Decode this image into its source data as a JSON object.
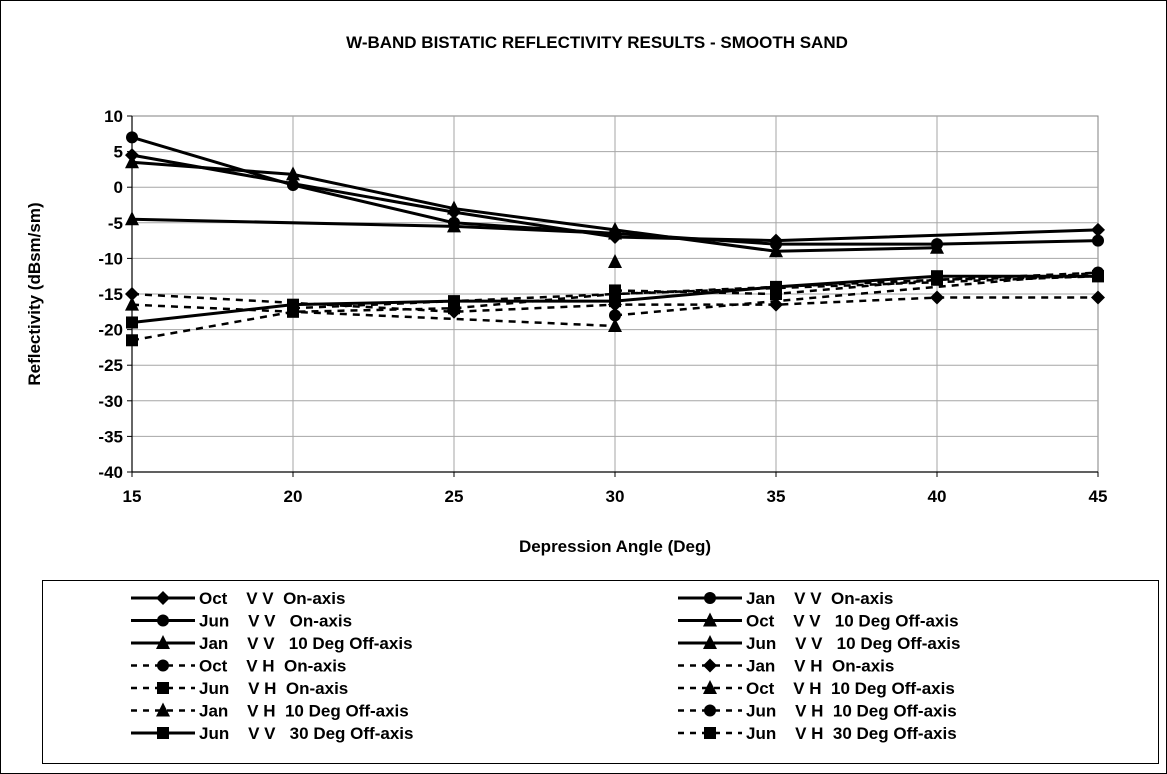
{
  "chart_data": {
    "type": "line",
    "title": "W-BAND BISTATIC REFLECTIVITY RESULTS  - SMOOTH SAND",
    "xlabel": "Depression Angle  (Deg)",
    "ylabel": "Reflectivity (dBsm/sm)",
    "xlim": [
      15,
      45
    ],
    "ylim": [
      -40,
      10
    ],
    "x_ticks": [
      "15",
      "20",
      "25",
      "30",
      "35",
      "40",
      "45"
    ],
    "y_ticks": [
      "10",
      "5",
      "0",
      "-5",
      "-10",
      "-15",
      "-20",
      "-25",
      "-30",
      "-35",
      "-40"
    ],
    "grid": true,
    "legend_position": "bottom",
    "series": [
      {
        "name": "Oct    V V  On-axis",
        "line": "solid",
        "marker": "diamond",
        "x": [
          15,
          25,
          30,
          35,
          45
        ],
        "y": [
          4.5,
          -3.5,
          -7,
          -7.5,
          -6
        ]
      },
      {
        "name": "Jan    V V  On-axis",
        "line": "solid",
        "marker": "circle",
        "x": [
          30,
          35,
          40,
          45
        ],
        "y": [
          -6.5,
          -8,
          -8,
          -7.5
        ]
      },
      {
        "name": "Jun    V V   On-axis",
        "line": "solid",
        "marker": "circle",
        "x": [
          15,
          20,
          25,
          30
        ],
        "y": [
          7,
          0.3,
          -5,
          -6.5
        ]
      },
      {
        "name": "Oct    V V   10 Deg Off-axis",
        "line": "solid",
        "marker": "triangle",
        "x": [
          15,
          20,
          25,
          30,
          35,
          40
        ],
        "y": [
          3.5,
          1.8,
          -3,
          -6,
          -9,
          -8.5
        ]
      },
      {
        "name": "Jan    V V   10 Deg Off-axis",
        "line": "solid",
        "marker": "triangle",
        "x": [
          15,
          25,
          30
        ],
        "y": [
          -4.5,
          -5.5,
          -6.5
        ]
      },
      {
        "name": "Jun    V V   10 Deg Off-axis",
        "line": "solid",
        "marker": "triangle",
        "x": [
          30
        ],
        "y": [
          -10.5
        ]
      },
      {
        "name": "Oct    V H  On-axis",
        "line": "dashed",
        "marker": "circle",
        "x": [
          30,
          45
        ],
        "y": [
          -18,
          -12
        ]
      },
      {
        "name": "Jan    V H  On-axis",
        "line": "dashed",
        "marker": "diamond",
        "x": [
          15,
          25,
          30,
          35,
          40,
          45
        ],
        "y": [
          -15,
          -17.5,
          -16.5,
          -16.5,
          -15.5,
          -15.5
        ]
      },
      {
        "name": "Jun    V H  On-axis",
        "line": "dashed",
        "marker": "square",
        "x": [
          15,
          20,
          25,
          30,
          45
        ],
        "y": [
          -21.5,
          -17.5,
          -17,
          -15,
          -12.5
        ]
      },
      {
        "name": "Oct    V H  10 Deg Off-axis",
        "line": "dashed",
        "marker": "triangle",
        "x": [
          15,
          30
        ],
        "y": [
          -16.5,
          -19.5
        ]
      },
      {
        "name": "Jan    V H  10 Deg Off-axis",
        "line": "dashed",
        "marker": "triangle",
        "x": [
          25
        ],
        "y": [
          -16.5
        ]
      },
      {
        "name": "Jun    V H  10 Deg Off-axis",
        "line": "dashed",
        "marker": "circle",
        "x": [
          20,
          45
        ],
        "y": [
          -17,
          -12
        ]
      },
      {
        "name": "Jun    V V   30 Deg Off-axis",
        "line": "solid",
        "marker": "square",
        "x": [
          15,
          20,
          25,
          30,
          35,
          40,
          45
        ],
        "y": [
          -19,
          -16.5,
          -16,
          -16,
          -14,
          -12.5,
          -12.5
        ]
      },
      {
        "name": "Jun    V H  30 Deg Off-axis",
        "line": "dashed",
        "marker": "square",
        "x": [
          30,
          35,
          40,
          45
        ],
        "y": [
          -14.5,
          -15,
          -13,
          -12.5
        ]
      }
    ]
  }
}
